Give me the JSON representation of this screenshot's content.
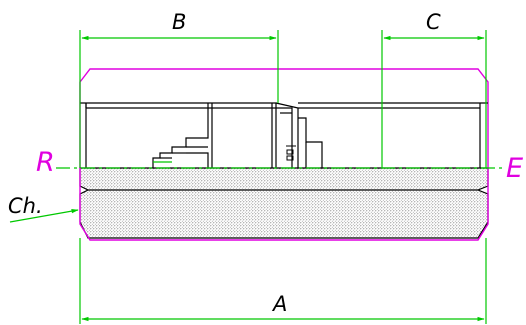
{
  "labels": {
    "dim_a": "A",
    "dim_b": "B",
    "dim_c": "C",
    "left_end": "R",
    "right_end": "E",
    "chamfer": "Ch."
  },
  "colors": {
    "dimension": "#00c800",
    "outline": "#e000e0",
    "part": "#000000",
    "end_label": "#e000e0"
  }
}
